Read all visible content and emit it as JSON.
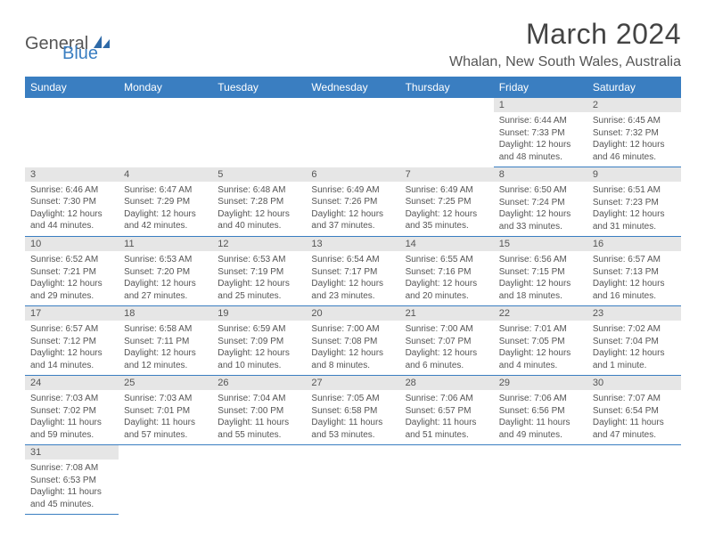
{
  "logo": {
    "text1": "General",
    "text2": "Blue"
  },
  "title": "March 2024",
  "location": "Whalan, New South Wales, Australia",
  "colors": {
    "headerBg": "#3a7ec1",
    "headerText": "#ffffff",
    "dayBarBg": "#e6e6e6",
    "cellBorder": "#3a7ec1",
    "bodyText": "#555555"
  },
  "dayHeaders": [
    "Sunday",
    "Monday",
    "Tuesday",
    "Wednesday",
    "Thursday",
    "Friday",
    "Saturday"
  ],
  "layout": {
    "cols": 7,
    "rows": 6,
    "firstDayCol": 5,
    "daysInMonth": 31
  },
  "days": {
    "1": {
      "sunrise": "6:44 AM",
      "sunset": "7:33 PM",
      "daylight": "12 hours and 48 minutes."
    },
    "2": {
      "sunrise": "6:45 AM",
      "sunset": "7:32 PM",
      "daylight": "12 hours and 46 minutes."
    },
    "3": {
      "sunrise": "6:46 AM",
      "sunset": "7:30 PM",
      "daylight": "12 hours and 44 minutes."
    },
    "4": {
      "sunrise": "6:47 AM",
      "sunset": "7:29 PM",
      "daylight": "12 hours and 42 minutes."
    },
    "5": {
      "sunrise": "6:48 AM",
      "sunset": "7:28 PM",
      "daylight": "12 hours and 40 minutes."
    },
    "6": {
      "sunrise": "6:49 AM",
      "sunset": "7:26 PM",
      "daylight": "12 hours and 37 minutes."
    },
    "7": {
      "sunrise": "6:49 AM",
      "sunset": "7:25 PM",
      "daylight": "12 hours and 35 minutes."
    },
    "8": {
      "sunrise": "6:50 AM",
      "sunset": "7:24 PM",
      "daylight": "12 hours and 33 minutes."
    },
    "9": {
      "sunrise": "6:51 AM",
      "sunset": "7:23 PM",
      "daylight": "12 hours and 31 minutes."
    },
    "10": {
      "sunrise": "6:52 AM",
      "sunset": "7:21 PM",
      "daylight": "12 hours and 29 minutes."
    },
    "11": {
      "sunrise": "6:53 AM",
      "sunset": "7:20 PM",
      "daylight": "12 hours and 27 minutes."
    },
    "12": {
      "sunrise": "6:53 AM",
      "sunset": "7:19 PM",
      "daylight": "12 hours and 25 minutes."
    },
    "13": {
      "sunrise": "6:54 AM",
      "sunset": "7:17 PM",
      "daylight": "12 hours and 23 minutes."
    },
    "14": {
      "sunrise": "6:55 AM",
      "sunset": "7:16 PM",
      "daylight": "12 hours and 20 minutes."
    },
    "15": {
      "sunrise": "6:56 AM",
      "sunset": "7:15 PM",
      "daylight": "12 hours and 18 minutes."
    },
    "16": {
      "sunrise": "6:57 AM",
      "sunset": "7:13 PM",
      "daylight": "12 hours and 16 minutes."
    },
    "17": {
      "sunrise": "6:57 AM",
      "sunset": "7:12 PM",
      "daylight": "12 hours and 14 minutes."
    },
    "18": {
      "sunrise": "6:58 AM",
      "sunset": "7:11 PM",
      "daylight": "12 hours and 12 minutes."
    },
    "19": {
      "sunrise": "6:59 AM",
      "sunset": "7:09 PM",
      "daylight": "12 hours and 10 minutes."
    },
    "20": {
      "sunrise": "7:00 AM",
      "sunset": "7:08 PM",
      "daylight": "12 hours and 8 minutes."
    },
    "21": {
      "sunrise": "7:00 AM",
      "sunset": "7:07 PM",
      "daylight": "12 hours and 6 minutes."
    },
    "22": {
      "sunrise": "7:01 AM",
      "sunset": "7:05 PM",
      "daylight": "12 hours and 4 minutes."
    },
    "23": {
      "sunrise": "7:02 AM",
      "sunset": "7:04 PM",
      "daylight": "12 hours and 1 minute."
    },
    "24": {
      "sunrise": "7:03 AM",
      "sunset": "7:02 PM",
      "daylight": "11 hours and 59 minutes."
    },
    "25": {
      "sunrise": "7:03 AM",
      "sunset": "7:01 PM",
      "daylight": "11 hours and 57 minutes."
    },
    "26": {
      "sunrise": "7:04 AM",
      "sunset": "7:00 PM",
      "daylight": "11 hours and 55 minutes."
    },
    "27": {
      "sunrise": "7:05 AM",
      "sunset": "6:58 PM",
      "daylight": "11 hours and 53 minutes."
    },
    "28": {
      "sunrise": "7:06 AM",
      "sunset": "6:57 PM",
      "daylight": "11 hours and 51 minutes."
    },
    "29": {
      "sunrise": "7:06 AM",
      "sunset": "6:56 PM",
      "daylight": "11 hours and 49 minutes."
    },
    "30": {
      "sunrise": "7:07 AM",
      "sunset": "6:54 PM",
      "daylight": "11 hours and 47 minutes."
    },
    "31": {
      "sunrise": "7:08 AM",
      "sunset": "6:53 PM",
      "daylight": "11 hours and 45 minutes."
    }
  },
  "labels": {
    "sunrisePrefix": "Sunrise: ",
    "sunsetPrefix": "Sunset: ",
    "daylightPrefix": "Daylight: "
  }
}
